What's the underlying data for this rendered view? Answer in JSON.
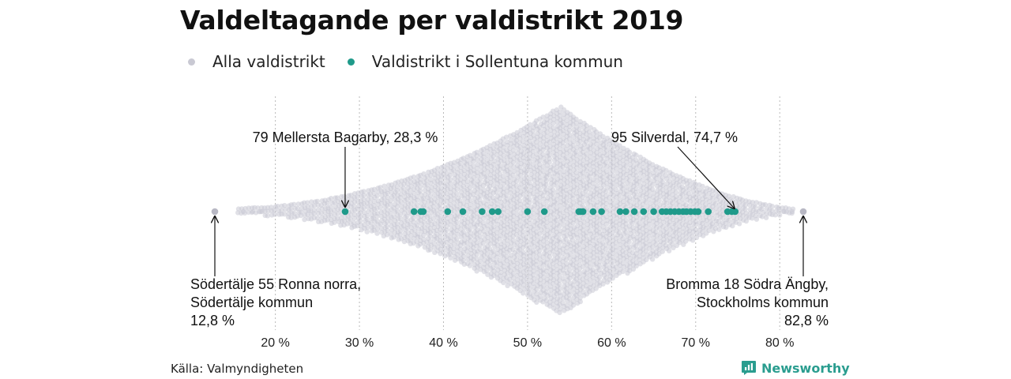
{
  "title": "Valdeltagande per valdistrikt 2019",
  "legend": [
    {
      "label": "Alla valdistrikt",
      "color": "#c9c9d3"
    },
    {
      "label": "Valdistrikt i Sollentuna kommun",
      "color": "#1f9a8a"
    }
  ],
  "source": "Källa: Valmyndigheten",
  "brand": "Newsworthy",
  "chart_data": {
    "type": "scatter",
    "subtype": "beeswarm",
    "xlim": [
      12.8,
      82.8
    ],
    "x_ticks": [
      {
        "value": 20,
        "label": "20 %"
      },
      {
        "value": 30,
        "label": "30 %"
      },
      {
        "value": 40,
        "label": "40 %"
      },
      {
        "value": 50,
        "label": "50 %"
      },
      {
        "value": 60,
        "label": "60 %"
      },
      {
        "value": 70,
        "label": "70 %"
      },
      {
        "value": 80,
        "label": "80 %"
      }
    ],
    "grid": "vertical dotted",
    "series": [
      {
        "name": "Alla valdistrikt",
        "color": "#c9c9d3",
        "distribution": {
          "min": 12.8,
          "peak": 53.9,
          "max": 82.8
        }
      },
      {
        "name": "Valdistrikt i Sollentuna kommun",
        "color": "#1f9a8a",
        "values": [
          28.3,
          36.5,
          37.3,
          37.6,
          40.5,
          42.3,
          44.6,
          45.8,
          46.5,
          50.0,
          52.0,
          56.1,
          56.3,
          56.6,
          57.8,
          58.8,
          61.0,
          61.7,
          62.7,
          63.8,
          65.0,
          66.0,
          66.5,
          67.0,
          67.5,
          68.0,
          68.5,
          68.9,
          69.4,
          69.9,
          70.3,
          71.5,
          73.8,
          74.3,
          74.7
        ]
      }
    ],
    "annotations": [
      {
        "x": 28.3,
        "lines": [
          "79 Mellersta Bagarby, 28,3 %"
        ]
      },
      {
        "x": 74.7,
        "lines": [
          "95 Silverdal, 74,7 %"
        ]
      },
      {
        "x": 12.8,
        "lines": [
          "Södertälje 55 Ronna norra,",
          "Södertälje kommun",
          "12,8 %"
        ]
      },
      {
        "x": 82.8,
        "lines": [
          "Bromma 18 Södra Ängby,",
          "Stockholms kommun",
          "82,8 %"
        ]
      }
    ]
  }
}
